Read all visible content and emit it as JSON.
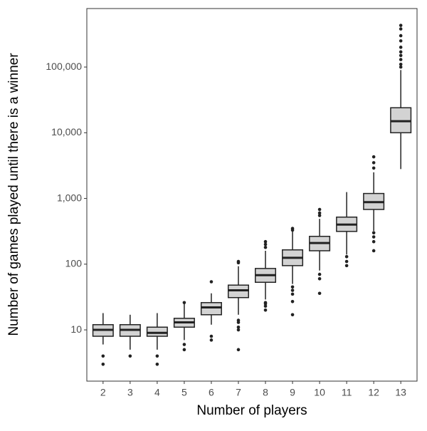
{
  "chart_data": {
    "type": "box",
    "log_y": true,
    "x_label": "Number of players",
    "y_label": "Number of games played until there is a winner",
    "categories": [
      "2",
      "3",
      "4",
      "5",
      "6",
      "7",
      "8",
      "9",
      "10",
      "11",
      "12",
      "13"
    ],
    "color": "#d3d3d3",
    "boxes": [
      {
        "whisker_low": 6,
        "q1": 8,
        "median": 10,
        "q3": 12,
        "whisker_high": 18,
        "outliers": [
          4,
          3
        ]
      },
      {
        "whisker_low": 5,
        "q1": 8,
        "median": 10,
        "q3": 12,
        "whisker_high": 17,
        "outliers": [
          4
        ]
      },
      {
        "whisker_low": 5,
        "q1": 8,
        "median": 9,
        "q3": 11,
        "whisker_high": 18,
        "outliers": [
          4,
          3
        ]
      },
      {
        "whisker_low": 7,
        "q1": 11,
        "median": 13,
        "q3": 15,
        "whisker_high": 25,
        "outliers": [
          26,
          6,
          5
        ]
      },
      {
        "whisker_low": 12,
        "q1": 17,
        "median": 22,
        "q3": 26,
        "whisker_high": 36,
        "outliers": [
          54,
          8,
          7
        ]
      },
      {
        "whisker_low": 17,
        "q1": 31,
        "median": 40,
        "q3": 48,
        "whisker_high": 93,
        "outliers": [
          110,
          105,
          14,
          13,
          11,
          10,
          5
        ]
      },
      {
        "whisker_low": 29,
        "q1": 53,
        "median": 68,
        "q3": 86,
        "whisker_high": 160,
        "outliers": [
          220,
          200,
          180,
          26,
          25,
          23,
          20
        ]
      },
      {
        "whisker_low": 50,
        "q1": 95,
        "median": 125,
        "q3": 165,
        "whisker_high": 315,
        "outliers": [
          350,
          330,
          45,
          40,
          35,
          27,
          17
        ]
      },
      {
        "whisker_low": 80,
        "q1": 160,
        "median": 210,
        "q3": 265,
        "whisker_high": 490,
        "outliers": [
          680,
          600,
          550,
          70,
          60,
          36
        ]
      },
      {
        "whisker_low": 140,
        "q1": 315,
        "median": 400,
        "q3": 520,
        "whisker_high": 1250,
        "outliers": [
          130,
          110,
          95
        ]
      },
      {
        "whisker_low": 320,
        "q1": 680,
        "median": 880,
        "q3": 1190,
        "whisker_high": 2500,
        "outliers": [
          4300,
          3500,
          2900,
          300,
          260,
          220,
          160
        ]
      },
      {
        "whisker_low": 2800,
        "q1": 10000,
        "median": 15000,
        "q3": 24000,
        "whisker_high": 90000,
        "outliers": [
          430000,
          380000,
          300000,
          250000,
          200000,
          170000,
          150000,
          130000,
          110000,
          100000
        ]
      }
    ],
    "ylim": [
      1.66,
      776000
    ],
    "yticks": [
      10,
      100,
      {
        "value": 1000,
        "label": "1,000"
      },
      {
        "value": 10000,
        "label": "10,000"
      },
      {
        "value": 100000,
        "label": "100,000"
      }
    ]
  }
}
